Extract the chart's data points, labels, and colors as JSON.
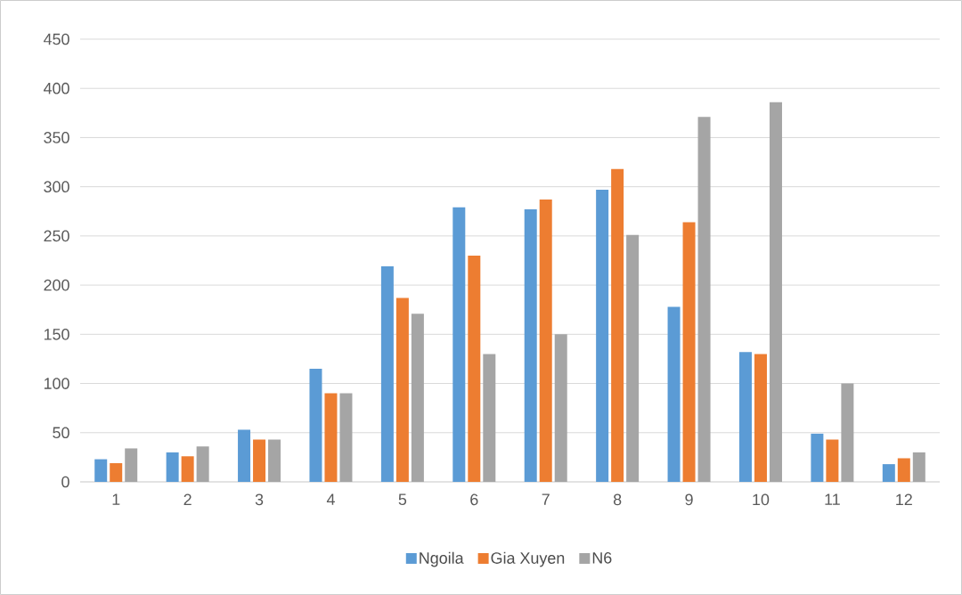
{
  "chart_data": {
    "type": "bar",
    "categories": [
      "1",
      "2",
      "3",
      "4",
      "5",
      "6",
      "7",
      "8",
      "9",
      "10",
      "11",
      "12"
    ],
    "series": [
      {
        "name": "Ngoila",
        "color": "#5b9bd5",
        "values": [
          23,
          30,
          53,
          115,
          219,
          279,
          277,
          297,
          178,
          132,
          49,
          18
        ]
      },
      {
        "name": "Gia Xuyen",
        "color": "#ed7d31",
        "values": [
          19,
          26,
          43,
          90,
          187,
          230,
          287,
          318,
          264,
          130,
          43,
          24
        ]
      },
      {
        "name": "N6",
        "color": "#a5a5a5",
        "values": [
          34,
          36,
          43,
          90,
          171,
          130,
          150,
          251,
          371,
          386,
          100,
          30
        ]
      }
    ],
    "ylim": [
      0,
      450
    ],
    "yticks": [
      0,
      50,
      100,
      150,
      200,
      250,
      300,
      350,
      400,
      450
    ],
    "grid": "y",
    "legend": "bottom"
  }
}
